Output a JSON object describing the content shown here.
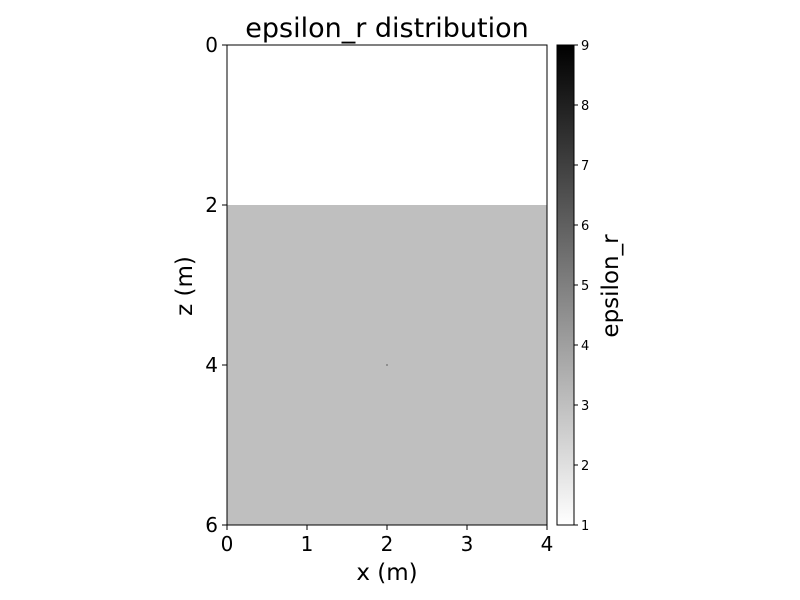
{
  "chart_data": {
    "type": "heatmap",
    "title": "epsilon_r distribution",
    "xlabel": "x (m)",
    "ylabel": "z (m)",
    "xlim": [
      0,
      4
    ],
    "ylim": [
      6,
      0
    ],
    "x_ticks": [
      0,
      1,
      2,
      3,
      4
    ],
    "y_ticks": [
      0,
      2,
      4,
      6
    ],
    "x_tick_labels": [
      "0",
      "1",
      "2",
      "3",
      "4"
    ],
    "y_tick_labels": [
      "0",
      "2",
      "4",
      "6"
    ],
    "layers": [
      {
        "z_top": 0,
        "z_bottom": 2,
        "x_start": 0,
        "x_end": 4,
        "epsilon_r": 1
      },
      {
        "z_top": 2,
        "z_bottom": 6,
        "x_start": 0,
        "x_end": 4,
        "epsilon_r": 3
      }
    ],
    "inclusions": [
      {
        "x": 2,
        "z": 4,
        "epsilon_r": 9
      }
    ],
    "colormap": "gray_r",
    "colorbar": {
      "label": "epsilon_r",
      "min": 1,
      "max": 9,
      "ticks": [
        1,
        2,
        3,
        4,
        5,
        6,
        7,
        8,
        9
      ],
      "tick_labels": [
        "1",
        "2",
        "3",
        "4",
        "5",
        "6",
        "7",
        "8",
        "9"
      ]
    },
    "grid": false
  }
}
